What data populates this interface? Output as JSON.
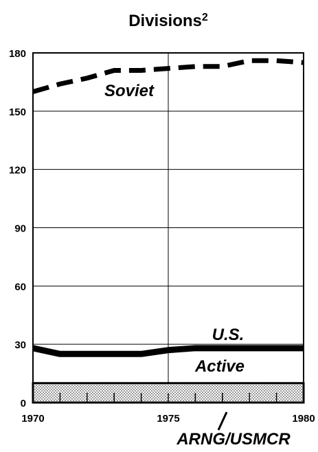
{
  "chart_data": {
    "type": "line",
    "title": "Divisions",
    "title_superscript": "2",
    "x": [
      1970,
      1971,
      1972,
      1973,
      1974,
      1975,
      1976,
      1977,
      1978,
      1979,
      1980
    ],
    "series": [
      {
        "name": "Soviet",
        "color": "#000000",
        "style": "dashed",
        "values": [
          160,
          164,
          167,
          171,
          171,
          172,
          173,
          173,
          176,
          176,
          175
        ]
      },
      {
        "name": "U.S. Active",
        "color": "#000000",
        "style": "solid",
        "values": [
          28,
          25,
          25,
          25,
          25,
          27,
          28,
          28,
          28,
          28,
          28
        ]
      },
      {
        "name": "ARNG/USMCR",
        "color": "#000000",
        "style": "dotted-area",
        "values": [
          10,
          10,
          10,
          10,
          10,
          10,
          10,
          10,
          10,
          10,
          10
        ]
      }
    ],
    "xlim": [
      1970,
      1980
    ],
    "xticks": [
      1970,
      1975,
      1980
    ],
    "ylim": [
      0,
      180
    ],
    "yticks": [
      0,
      30,
      60,
      90,
      120,
      150,
      180
    ],
    "grid": true
  }
}
